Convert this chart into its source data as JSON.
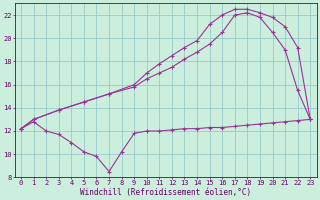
{
  "bg_color": "#cceedd",
  "line_color": "#993399",
  "grid_color": "#99cccc",
  "xlabel": "Windchill (Refroidissement éolien,°C)",
  "xlabel_fontsize": 5.5,
  "tick_fontsize": 5,
  "xmin": -0.5,
  "xmax": 23.5,
  "ymin": 8,
  "ymax": 23,
  "yticks": [
    8,
    10,
    12,
    14,
    16,
    18,
    20,
    22
  ],
  "xticks": [
    0,
    1,
    2,
    3,
    4,
    5,
    6,
    7,
    8,
    9,
    10,
    11,
    12,
    13,
    14,
    15,
    16,
    17,
    18,
    19,
    20,
    21,
    22,
    23
  ],
  "series_low": [
    [
      0,
      12.2
    ],
    [
      1,
      12.8
    ],
    [
      2,
      12.0
    ],
    [
      3,
      11.7
    ],
    [
      4,
      11.0
    ],
    [
      5,
      10.2
    ],
    [
      6,
      9.8
    ],
    [
      7,
      8.5
    ],
    [
      8,
      10.2
    ],
    [
      9,
      11.8
    ],
    [
      10,
      12.0
    ],
    [
      11,
      12.0
    ],
    [
      12,
      12.1
    ],
    [
      13,
      12.2
    ],
    [
      14,
      12.2
    ],
    [
      15,
      12.3
    ],
    [
      16,
      12.3
    ],
    [
      17,
      12.4
    ],
    [
      18,
      12.5
    ],
    [
      19,
      12.6
    ],
    [
      20,
      12.7
    ],
    [
      21,
      12.8
    ],
    [
      22,
      12.9
    ],
    [
      23,
      13.0
    ]
  ],
  "series_mid": [
    [
      0,
      12.2
    ],
    [
      1,
      13.0
    ],
    [
      3,
      13.8
    ],
    [
      5,
      14.5
    ],
    [
      7,
      15.2
    ],
    [
      9,
      15.8
    ],
    [
      10,
      16.5
    ],
    [
      11,
      17.0
    ],
    [
      12,
      17.5
    ],
    [
      13,
      18.2
    ],
    [
      14,
      18.8
    ],
    [
      15,
      19.5
    ],
    [
      16,
      20.5
    ],
    [
      17,
      22.0
    ],
    [
      18,
      22.2
    ],
    [
      19,
      21.8
    ],
    [
      20,
      20.5
    ],
    [
      21,
      19.0
    ],
    [
      22,
      15.5
    ],
    [
      23,
      13.0
    ]
  ],
  "series_high": [
    [
      0,
      12.2
    ],
    [
      1,
      13.0
    ],
    [
      3,
      13.8
    ],
    [
      5,
      14.5
    ],
    [
      7,
      15.2
    ],
    [
      9,
      16.0
    ],
    [
      10,
      17.0
    ],
    [
      11,
      17.8
    ],
    [
      12,
      18.5
    ],
    [
      13,
      19.2
    ],
    [
      14,
      19.8
    ],
    [
      15,
      21.2
    ],
    [
      16,
      22.0
    ],
    [
      17,
      22.5
    ],
    [
      18,
      22.5
    ],
    [
      19,
      22.2
    ],
    [
      20,
      21.8
    ],
    [
      21,
      21.0
    ],
    [
      22,
      19.2
    ],
    [
      23,
      13.0
    ]
  ]
}
